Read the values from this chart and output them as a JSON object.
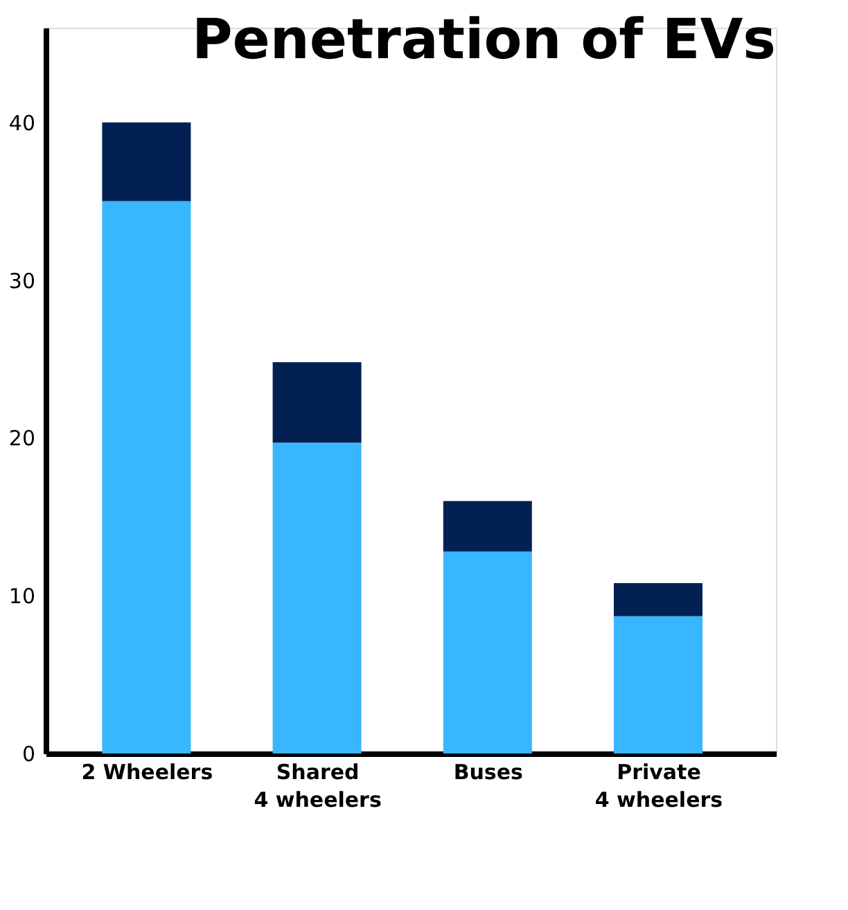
{
  "chart_data": {
    "type": "bar",
    "title": "Penetration of EVs",
    "stacked": true,
    "categories": [
      "2 Wheelers",
      "Shared\n4 wheelers",
      "Buses",
      "Private\n4 wheelers"
    ],
    "series": [
      {
        "color": "#38b6ff",
        "values": [
          35,
          19.7,
          12.8,
          8.7
        ]
      },
      {
        "color": "#022152",
        "values": [
          5,
          5.1,
          3.2,
          2.1
        ]
      }
    ],
    "ylim": [
      0,
      46
    ],
    "yticks": [
      0,
      10,
      20,
      30,
      40
    ],
    "grid": false,
    "legend": false
  }
}
